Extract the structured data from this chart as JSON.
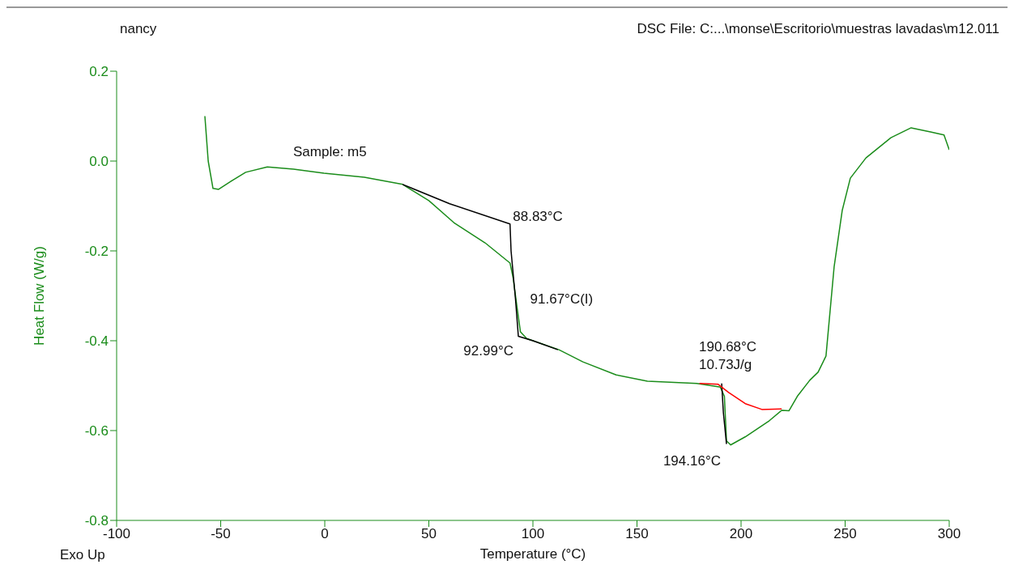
{
  "chart_data": {
    "type": "line",
    "xlabel": "Temperature (°C)",
    "ylabel": "Heat Flow (W/g)",
    "xlim": [
      -100,
      300
    ],
    "xticks": [
      -100,
      -50,
      0,
      50,
      100,
      150,
      200,
      250,
      300
    ],
    "ylim": [
      -0.8,
      0.2
    ],
    "yticks": [
      -0.8,
      -0.6,
      -0.4,
      -0.2,
      {
        "value": 0,
        "label": "0.0"
      },
      0.2
    ],
    "marker": "none",
    "line_style": "solid",
    "series": [
      {
        "color": "#1a8c1a",
        "x": [
          -57.6,
          -56,
          -53.7,
          -51,
          -45,
          -38,
          -27.6,
          -15,
          -0.4,
          19,
          37.4,
          50,
          62,
          77,
          89,
          90.5,
          92.5,
          94,
          97,
          112.5,
          124,
          140,
          155,
          178.6,
          190,
          192,
          193,
          195,
          202,
          213.6,
          219.5,
          223,
          227,
          233,
          237,
          240.8,
          244.7,
          248.6,
          252.5,
          260,
          272,
          281.7,
          291,
          297.5,
          300
        ],
        "values": [
          0.1,
          0.0,
          -0.061,
          -0.063,
          -0.045,
          -0.025,
          -0.013,
          -0.018,
          -0.027,
          -0.036,
          -0.052,
          -0.088,
          -0.137,
          -0.182,
          -0.227,
          -0.26,
          -0.33,
          -0.38,
          -0.395,
          -0.42,
          -0.447,
          -0.476,
          -0.49,
          -0.495,
          -0.503,
          -0.524,
          -0.623,
          -0.632,
          -0.614,
          -0.578,
          -0.555,
          -0.556,
          -0.524,
          -0.488,
          -0.47,
          -0.434,
          -0.236,
          -0.11,
          -0.038,
          0.007,
          0.052,
          0.074,
          0.065,
          0.058,
          0.025
        ]
      },
      {
        "color": "#000000",
        "x": [
          37.4,
          60,
          89,
          89.5,
          91.67,
          93,
          100,
          112
        ],
        "values": [
          -0.052,
          -0.095,
          -0.14,
          -0.2,
          -0.31,
          -0.39,
          -0.4,
          -0.42
        ]
      },
      {
        "color": "#000000",
        "x": [
          190.68,
          191.5,
          193
        ],
        "values": [
          -0.495,
          -0.56,
          -0.63
        ]
      },
      {
        "color": "#ff0000",
        "x": [
          180,
          189,
          194,
          202,
          210,
          219.5
        ],
        "values": [
          -0.495,
          -0.497,
          -0.515,
          -0.54,
          -0.553,
          -0.552
        ]
      }
    ],
    "annotations": [
      "nancy",
      "DSC File: C:...\\monse\\Escritorio\\muestras lavadas\\m12.011",
      "Exo Up",
      "Sample: m5",
      {
        "text": "88.83°C",
        "x": 88.83,
        "y": -0.14
      },
      {
        "text": "91.67°C(I)",
        "x": 91.67,
        "y": -0.31
      },
      {
        "text": "92.99°C",
        "x": 92.99,
        "y": -0.39
      },
      {
        "text": "190.68°C\n10.73J/g",
        "x": 190.68,
        "y": -0.495
      },
      {
        "text": "194.16°C",
        "x": 194.16,
        "y": -0.63
      }
    ]
  }
}
